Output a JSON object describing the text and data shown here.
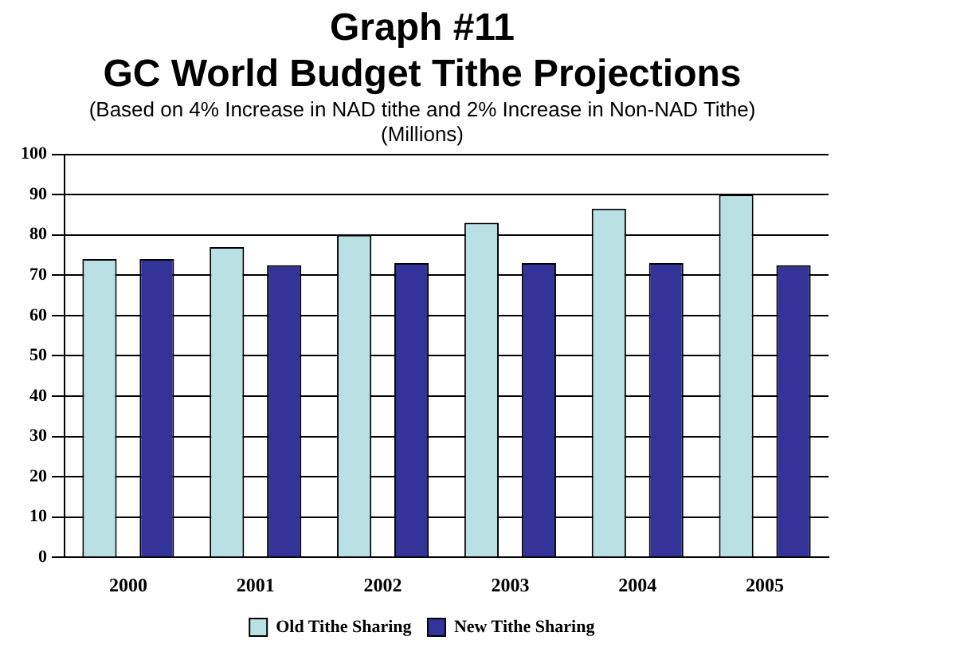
{
  "chart_data": {
    "type": "bar",
    "title": "Graph #11\nGC World Budget Tithe Projections",
    "subtitle": "(Based on 4% Increase in NAD tithe and 2% Increase in Non-NAD Tithe)\n(Millions)",
    "categories": [
      "2000",
      "2001",
      "2002",
      "2003",
      "2004",
      "2005"
    ],
    "series": [
      {
        "name": "Old Tithe Sharing",
        "color": "#b9e1e4",
        "values": [
          74,
          77,
          80,
          83,
          86.5,
          90
        ]
      },
      {
        "name": "New Tithe Sharing",
        "color": "#333399",
        "values": [
          74,
          72.5,
          73,
          73,
          73,
          72.5
        ]
      }
    ],
    "ylim": [
      0,
      100
    ],
    "yticks": [
      0,
      10,
      20,
      30,
      40,
      50,
      60,
      70,
      80,
      90,
      100
    ],
    "grid": "y",
    "legend": "bottom"
  }
}
